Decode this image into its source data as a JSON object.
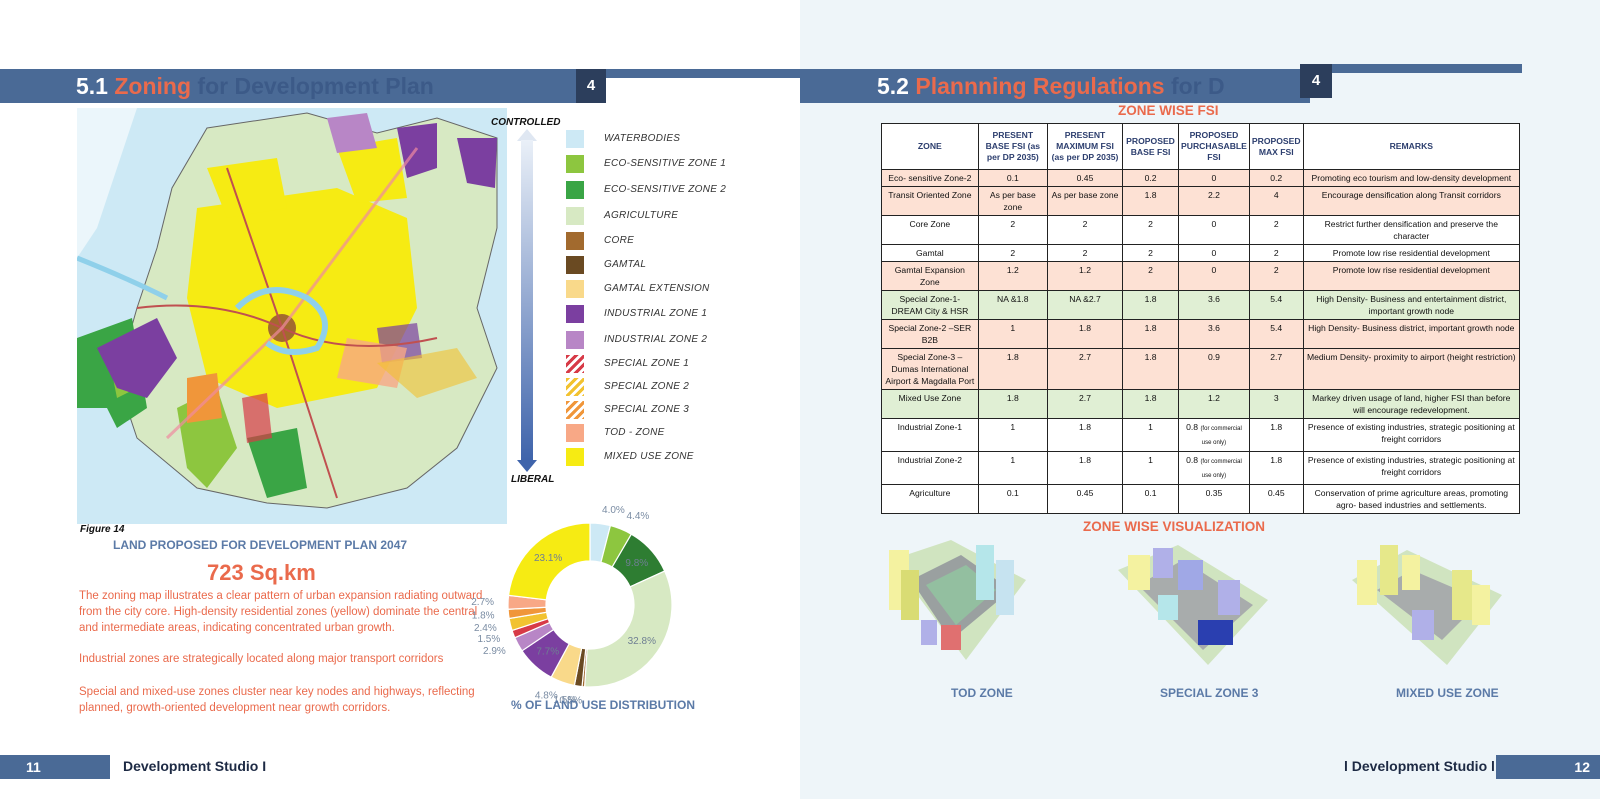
{
  "left_page": {
    "title": {
      "number": "5.1",
      "accent": "Zoning",
      "rest": "for Development Plan"
    },
    "chapter": "4",
    "arrow_top": "CONTROLLED",
    "arrow_bottom": "LIBERAL",
    "legend": [
      {
        "label": "WATERBODIES",
        "color": "#cde9f5"
      },
      {
        "label": "ECO-SENSITIVE ZONE 1",
        "color": "#8dc63f"
      },
      {
        "label": "ECO-SENSITIVE ZONE 2",
        "color": "#3aa545"
      },
      {
        "label": "AGRICULTURE",
        "color": "#d7e9c3"
      },
      {
        "label": "CORE",
        "color": "#a26a2e"
      },
      {
        "label": "GAMTAL",
        "color": "#6a4a22"
      },
      {
        "label": "GAMTAL EXTENSION",
        "color": "#f9d98a"
      },
      {
        "label": "INDUSTRIAL ZONE 1",
        "color": "#7b3fa0"
      },
      {
        "label": "INDUSTRIAL ZONE 2",
        "color": "#b886c6"
      },
      {
        "label": "SPECIAL ZONE 1",
        "color": "#d73a47"
      },
      {
        "label": "SPECIAL ZONE 2",
        "color": "#f2c230"
      },
      {
        "label": "SPECIAL ZONE 3",
        "color": "#f0963a"
      },
      {
        "label": "TOD - ZONE",
        "color": "#f8a886"
      },
      {
        "label": "MIXED USE ZONE",
        "color": "#f6eb13"
      }
    ],
    "figure_label": "Figure 14",
    "land_title": "LAND PROPOSED FOR DEVELOPMENT PLAN 2047",
    "land_area": "723 Sq.km",
    "paragraphs": [
      "The zoning map illustrates a clear pattern of urban expansion radiating outward from the city core. High-density residential zones (yellow) dominate the central and intermediate areas, indicating concentrated urban growth.",
      "Industrial zones are strategically located along major transport corridors",
      "Special and mixed-use zones cluster near key nodes and highways, reflecting planned, growth-oriented development near growth corridors."
    ],
    "footer_page": "11",
    "footer_text": "Development Studio I"
  },
  "chart_data": {
    "type": "pie",
    "title": "% OF LAND USE DISTRIBUTION",
    "donut": true,
    "slices": [
      {
        "label": "4.0%",
        "value": 4.0,
        "color": "#cde9f5"
      },
      {
        "label": "4.4%",
        "value": 4.4,
        "color": "#8dc63f"
      },
      {
        "label": "9.8%",
        "value": 9.8,
        "color": "#2e7d32"
      },
      {
        "label": "32.8%",
        "value": 32.8,
        "color": "#d7e9c3"
      },
      {
        "label": "0.5%",
        "value": 0.5,
        "color": "#a26a2e"
      },
      {
        "label": "1.5%",
        "value": 1.5,
        "color": "#6a4a22"
      },
      {
        "label": "4.8%",
        "value": 4.8,
        "color": "#f9d98a"
      },
      {
        "label": "7.7%",
        "value": 7.7,
        "color": "#7b3fa0"
      },
      {
        "label": "2.9%",
        "value": 2.9,
        "color": "#b886c6"
      },
      {
        "label": "1.5%",
        "value": 1.5,
        "color": "#d73a47"
      },
      {
        "label": "2.4%",
        "value": 2.4,
        "color": "#f2c230"
      },
      {
        "label": "1.8%",
        "value": 1.8,
        "color": "#f0963a"
      },
      {
        "label": "2.7%",
        "value": 2.7,
        "color": "#f8a886"
      },
      {
        "label": "23.1%",
        "value": 23.1,
        "color": "#f6eb13"
      }
    ]
  },
  "right_page": {
    "title": {
      "number": "5.2",
      "accent": "Plannning Regulations",
      "rest": "for D"
    },
    "chapter": "4",
    "fsi_title": "ZONE WISE FSI",
    "table": {
      "headers": [
        "ZONE",
        "PRESENT BASE FSI (as per DP 2035)",
        "PRESENT MAXIMUM FSI (as per DP 2035)",
        "PROPOSED BASE FSI",
        "PROPOSED PURCHASABLE FSI",
        "PROPOSED MAX FSI",
        "REMARKS"
      ],
      "rows": [
        {
          "tone": "pink",
          "cells": [
            "Eco- sensitive Zone-2",
            "0.1",
            "0.45",
            "0.2",
            "0",
            "0.2",
            "Promoting eco tourism and low-density development"
          ]
        },
        {
          "tone": "pink",
          "cells": [
            "Transit Oriented Zone",
            "As per base zone",
            "As per base zone",
            "1.8",
            "2.2",
            "4",
            "Encourage densification along Transit corridors"
          ]
        },
        {
          "tone": "white",
          "cells": [
            "Core Zone",
            "2",
            "2",
            "2",
            "0",
            "2",
            "Restrict further densification and preserve the character"
          ]
        },
        {
          "tone": "white",
          "cells": [
            "Gamtal",
            "2",
            "2",
            "2",
            "0",
            "2",
            "Promote low rise residential development"
          ]
        },
        {
          "tone": "pink",
          "cells": [
            "Gamtal Expansion Zone",
            "1.2",
            "1.2",
            "2",
            "0",
            "2",
            "Promote low rise residential development"
          ]
        },
        {
          "tone": "green",
          "cells": [
            "Special Zone-1- DREAM City & HSR",
            "NA &1.8",
            "NA &2.7",
            "1.8",
            "3.6",
            "5.4",
            "High Density- Business and entertainment district, important growth node"
          ]
        },
        {
          "tone": "pink",
          "cells": [
            "Special Zone-2 –SER B2B",
            "1",
            "1.8",
            "1.8",
            "3.6",
            "5.4",
            "High Density- Business district, important growth node"
          ]
        },
        {
          "tone": "pink",
          "cells": [
            "Special Zone-3 – Dumas International Airport & Magdalla Port",
            "1.8",
            "2.7",
            "1.8",
            "0.9",
            "2.7",
            "Medium Density- proximity to airport (height restriction)"
          ]
        },
        {
          "tone": "green",
          "cells": [
            "Mixed Use Zone",
            "1.8",
            "2.7",
            "1.8",
            "1.2",
            "3",
            "Markey driven usage of land, higher FSI than before will encourage redevelopment."
          ]
        },
        {
          "tone": "white",
          "cells": [
            "Industrial Zone-1",
            "1",
            "1.8",
            "1",
            "0.8",
            "1.8",
            "Presence of existing industries, strategic positioning at freight corridors"
          ],
          "note": "(for commercial use only)"
        },
        {
          "tone": "white",
          "cells": [
            "Industrial Zone-2",
            "1",
            "1.8",
            "1",
            "0.8",
            "1.8",
            "Presence of existing industries, strategic positioning at freight corridors"
          ],
          "note": "(for commercial use only)"
        },
        {
          "tone": "white",
          "cells": [
            "Agriculture",
            "0.1",
            "0.45",
            "0.1",
            "0.35",
            "0.45",
            "Conservation of prime agriculture areas, promoting agro- based industries and settlements."
          ]
        }
      ]
    },
    "viz_title": "ZONE WISE VISUALIZATION",
    "viz_labels": [
      "TOD ZONE",
      "SPECIAL ZONE 3",
      "MIXED USE ZONE"
    ],
    "footer_text": "l Development Studio l",
    "footer_page": "12"
  }
}
